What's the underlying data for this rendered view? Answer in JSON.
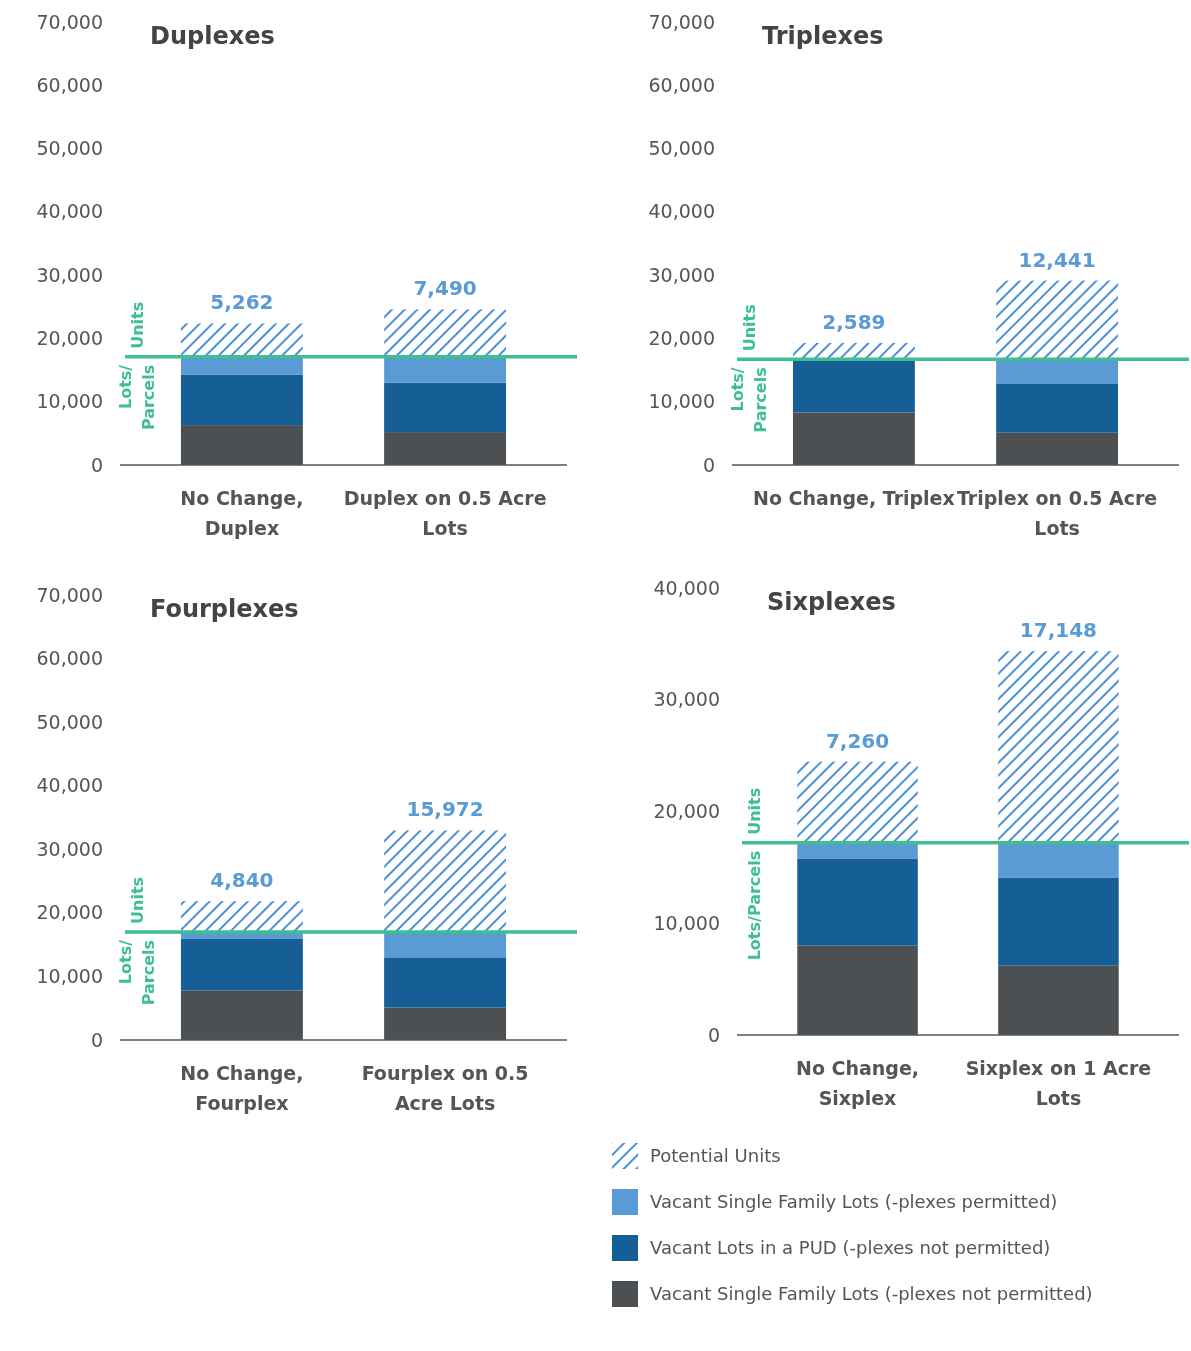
{
  "chart_data": [
    {
      "type": "bar",
      "title": "Duplexes",
      "stacked": true,
      "categories": [
        "No Change, Duplex",
        "Duplex on 0.5 Acre Lots"
      ],
      "ylim": [
        0,
        70000
      ],
      "yticks": [
        {
          "value": 0,
          "label": "0"
        },
        {
          "value": 10000,
          "label": "10,000"
        },
        {
          "value": 20000,
          "label": "20,000"
        },
        {
          "value": 30000,
          "label": "30,000"
        },
        {
          "value": 40000,
          "label": "40,000"
        },
        {
          "value": 50000,
          "label": "50,000"
        },
        {
          "value": 60000,
          "label": "60,000"
        },
        {
          "value": 70000,
          "label": "70,000"
        }
      ],
      "series": [
        {
          "color": "#4d5053",
          "values": [
            6300,
            5200
          ]
        },
        {
          "color": "#165f96",
          "values": [
            8000,
            7800
          ]
        },
        {
          "color": "#5b9bd5",
          "values": [
            2800,
            4100
          ]
        },
        {
          "color": "#4a90d9",
          "values": [
            5262,
            7490
          ],
          "value_labels": [
            "5,262",
            "7,490"
          ]
        }
      ],
      "ref_lines": [
        {
          "axis": "y",
          "value": 17100,
          "color": "#3dbf8e"
        }
      ],
      "annotations": [
        "Units",
        "Lots/ Parcels"
      ]
    },
    {
      "type": "bar",
      "title": "Triplexes",
      "stacked": true,
      "categories": [
        "No Change, Triplex",
        "Triplex on 0.5 Acre Lots"
      ],
      "ylim": [
        0,
        70000
      ],
      "yticks": [
        {
          "value": 0,
          "label": "0"
        },
        {
          "value": 10000,
          "label": "10,000"
        },
        {
          "value": 20000,
          "label": "20,000"
        },
        {
          "value": 30000,
          "label": "30,000"
        },
        {
          "value": 40000,
          "label": "40,000"
        },
        {
          "value": 50000,
          "label": "50,000"
        },
        {
          "value": 60000,
          "label": "60,000"
        },
        {
          "value": 70000,
          "label": "70,000"
        }
      ],
      "series": [
        {
          "color": "#4d5053",
          "values": [
            8300,
            5100
          ]
        },
        {
          "color": "#165f96",
          "values": [
            8400,
            7800
          ]
        },
        {
          "color": "#5b9bd5",
          "values": [
            0,
            3800
          ]
        },
        {
          "color": "#4a90d9",
          "values": [
            2589,
            12441
          ],
          "value_labels": [
            "2,589",
            "12,441"
          ]
        }
      ],
      "ref_lines": [
        {
          "axis": "y",
          "value": 16700,
          "color": "#3dbf8e"
        }
      ],
      "annotations": [
        "Units",
        "Lots/ Parcels"
      ]
    },
    {
      "type": "bar",
      "title": "Fourplexes",
      "stacked": true,
      "categories": [
        "No Change, Fourplex",
        "Fourplex on 0.5 Acre Lots"
      ],
      "ylim": [
        0,
        70000
      ],
      "yticks": [
        {
          "value": 0,
          "label": "0"
        },
        {
          "value": 10000,
          "label": "10,000"
        },
        {
          "value": 20000,
          "label": "20,000"
        },
        {
          "value": 30000,
          "label": "30,000"
        },
        {
          "value": 40000,
          "label": "40,000"
        },
        {
          "value": 50000,
          "label": "50,000"
        },
        {
          "value": 60000,
          "label": "60,000"
        },
        {
          "value": 70000,
          "label": "70,000"
        }
      ],
      "series": [
        {
          "color": "#4d5053",
          "values": [
            7800,
            5100
          ]
        },
        {
          "color": "#165f96",
          "values": [
            8100,
            7800
          ]
        },
        {
          "color": "#5b9bd5",
          "values": [
            1100,
            4100
          ]
        },
        {
          "color": "#4a90d9",
          "values": [
            4840,
            15972
          ],
          "value_labels": [
            "4,840",
            "15,972"
          ]
        }
      ],
      "ref_lines": [
        {
          "axis": "y",
          "value": 17000,
          "color": "#3dbf8e"
        }
      ],
      "annotations": [
        "Units",
        "Lots/ Parcels"
      ]
    },
    {
      "type": "bar",
      "title": "Sixplexes",
      "stacked": true,
      "categories": [
        "No Change, Sixplex",
        "Sixplex on 1 Acre Lots"
      ],
      "ylim": [
        0,
        40000
      ],
      "yticks": [
        {
          "value": 0,
          "label": "0"
        },
        {
          "value": 10000,
          "label": "10,000"
        },
        {
          "value": 20000,
          "label": "20,000"
        },
        {
          "value": 30000,
          "label": "30,000"
        },
        {
          "value": 40000,
          "label": "40,000"
        }
      ],
      "series": [
        {
          "name": "Vacant Single Family Lots (-plexes not permitted)",
          "color": "#4d5053",
          "values": [
            8000,
            6200
          ]
        },
        {
          "name": "Vacant Lots in a PUD  (-plexes not permitted)",
          "color": "#165f96",
          "values": [
            7800,
            7900
          ]
        },
        {
          "name": "Vacant Single Family Lots (-plexes permitted)",
          "color": "#5b9bd5",
          "values": [
            1400,
            3100
          ]
        },
        {
          "name": "Potential Units",
          "color": "#4a90d9",
          "values": [
            7260,
            17148
          ],
          "value_labels": [
            "7,260",
            "17,148"
          ]
        }
      ],
      "ref_lines": [
        {
          "axis": "y",
          "value": 17200,
          "color": "#3dbf8e"
        }
      ],
      "annotations": [
        "Units",
        "Lots/Parcels"
      ],
      "legend": "bottom"
    }
  ]
}
